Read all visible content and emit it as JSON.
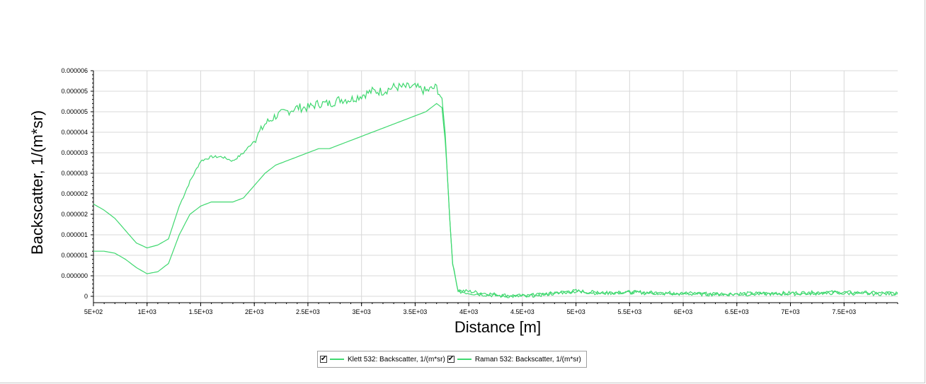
{
  "chart_data": {
    "type": "line",
    "xlabel": "Distance [m]",
    "ylabel": "Backscatter, 1/(m*sr)",
    "xlim": [
      500,
      8000
    ],
    "ylim": [
      0,
      5.5e-06
    ],
    "x_ticks": [
      500,
      1000,
      1500,
      2000,
      2500,
      3000,
      3500,
      4000,
      4500,
      5000,
      5500,
      6000,
      6500,
      7000,
      7500
    ],
    "x_tick_labels": [
      "5E+02",
      "1E+03",
      "1.5E+03",
      "2E+03",
      "2.5E+03",
      "3E+03",
      "3.5E+03",
      "4E+03",
      "4.5E+03",
      "5E+03",
      "5.5E+03",
      "6E+03",
      "6.5E+03",
      "7E+03",
      "7.5E+03"
    ],
    "y_ticks": [
      0,
      5e-07,
      1e-06,
      1.5e-06,
      2e-06,
      2.5e-06,
      3e-06,
      3.5e-06,
      4e-06,
      4.5e-06,
      5e-06,
      5.5e-06
    ],
    "y_tick_labels": [
      "0",
      "0.000000",
      "0.000001",
      "0.000001",
      "0.000002",
      "0.000002",
      "0.000003",
      "0.000003",
      "0.000004",
      "0.000005",
      "0.000005",
      "0.000006"
    ],
    "grid": true,
    "legend_position": "bottom-center",
    "series": [
      {
        "name": "Klett 532: Backscatter, 1/(m*sr)",
        "color": "#3fd86f",
        "x": [
          500,
          600,
          700,
          800,
          900,
          1000,
          1100,
          1200,
          1300,
          1400,
          1500,
          1600,
          1700,
          1800,
          1900,
          2000,
          2100,
          2200,
          2300,
          2400,
          2500,
          2600,
          2700,
          2800,
          2900,
          3000,
          3100,
          3200,
          3300,
          3400,
          3500,
          3600,
          3700,
          3750,
          3780,
          3800,
          3820,
          3850,
          3900,
          4000,
          4100,
          4200,
          4300,
          4400,
          4500,
          4600,
          4700,
          4800,
          4900,
          5000,
          5100,
          5200,
          5300,
          5400,
          5500,
          5600,
          5700,
          5800,
          5900,
          6000,
          6200,
          6400,
          6600,
          6800,
          7000,
          7200,
          7300,
          7400,
          7600,
          7800,
          8000
        ],
        "y": [
          2.25e-06,
          2.1e-06,
          1.9e-06,
          1.6e-06,
          1.3e-06,
          1.18e-06,
          1.25e-06,
          1.4e-06,
          2.2e-06,
          2.8e-06,
          3.3e-06,
          3.4e-06,
          3.4e-06,
          3.3e-06,
          3.5e-06,
          3.8e-06,
          4.2e-06,
          4.4e-06,
          4.5e-06,
          4.6e-06,
          4.6e-06,
          4.7e-06,
          4.7e-06,
          4.8e-06,
          4.8e-06,
          4.9e-06,
          5e-06,
          5e-06,
          5.1e-06,
          5.1e-06,
          5.1e-06,
          5e-06,
          5.1e-06,
          4.8e-06,
          4e-06,
          3e-06,
          2e-06,
          8e-07,
          1.4e-07,
          1.2e-07,
          9e-08,
          6e-08,
          3e-08,
          2e-08,
          1e-08,
          3e-08,
          5e-08,
          8e-08,
          1.1e-07,
          1.3e-07,
          1.1e-07,
          9e-08,
          9e-08,
          1e-07,
          1e-07,
          1e-07,
          9e-08,
          8e-08,
          8e-08,
          8e-08,
          7e-08,
          6e-08,
          7e-08,
          7e-08,
          8e-08,
          9e-08,
          1e-07,
          1e-07,
          9e-08,
          8e-08,
          8e-08
        ]
      },
      {
        "name": "Raman 532: Backscatter, 1/(m*sr)",
        "color": "#3fd86f",
        "x": [
          500,
          600,
          700,
          800,
          900,
          1000,
          1100,
          1200,
          1300,
          1400,
          1500,
          1600,
          1700,
          1800,
          1900,
          2000,
          2100,
          2200,
          2300,
          2400,
          2500,
          2600,
          2700,
          2800,
          2900,
          3000,
          3100,
          3200,
          3300,
          3400,
          3500,
          3600,
          3700,
          3750,
          3780,
          3800,
          3820,
          3850,
          3900,
          4000,
          4100,
          4200,
          4300,
          4400,
          4500,
          4600,
          4700,
          4800,
          4900,
          5000,
          5100,
          5200,
          5300,
          5400,
          5500,
          5600,
          5700,
          5800,
          5900,
          6000,
          6200,
          6400,
          6600,
          6800,
          7000,
          7200,
          7300,
          7400,
          7600,
          7800,
          8000
        ],
        "y": [
          1.1e-06,
          1.1e-06,
          1.05e-06,
          9e-07,
          7e-07,
          5.5e-07,
          6e-07,
          8e-07,
          1.5e-06,
          2e-06,
          2.2e-06,
          2.3e-06,
          2.3e-06,
          2.3e-06,
          2.4e-06,
          2.7e-06,
          3e-06,
          3.2e-06,
          3.3e-06,
          3.4e-06,
          3.5e-06,
          3.6e-06,
          3.6e-06,
          3.7e-06,
          3.8e-06,
          3.9e-06,
          4e-06,
          4.1e-06,
          4.2e-06,
          4.3e-06,
          4.4e-06,
          4.5e-06,
          4.7e-06,
          4.6e-06,
          3.8e-06,
          3e-06,
          2e-06,
          8e-07,
          1.2e-07,
          8e-08,
          5e-08,
          3e-08,
          1e-08,
          0.0,
          0.0,
          2e-08,
          4e-08,
          7e-08,
          1e-07,
          1.2e-07,
          1e-07,
          8e-08,
          8e-08,
          9e-08,
          9e-08,
          8e-08,
          8e-08,
          7e-08,
          6e-08,
          6e-08,
          5e-08,
          5e-08,
          5e-08,
          6e-08,
          6e-08,
          7e-08,
          8e-08,
          8e-08,
          7e-08,
          6e-08,
          6e-08
        ]
      }
    ]
  },
  "legend": {
    "items": [
      {
        "label": "Klett 532: Backscatter, 1/(m*sr)",
        "checked": "✔"
      },
      {
        "label": "Raman 532: Backscatter, 1/(m*sr)",
        "checked": "✔"
      }
    ]
  }
}
